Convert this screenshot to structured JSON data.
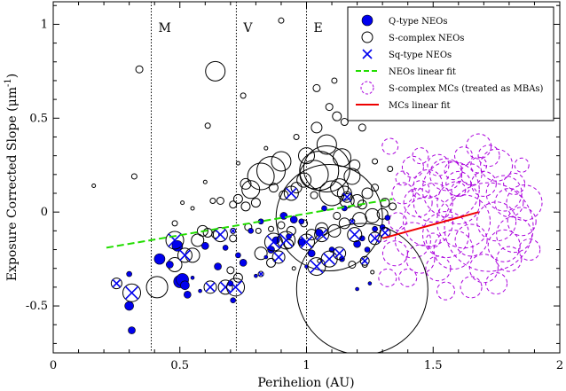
{
  "chart_data": {
    "type": "scatter",
    "xlabel": "Perihelion (AU)",
    "ylabel_main": "Exposure Corrected Slope (μm",
    "ylabel_sup": "-1",
    "ylabel_end": ")",
    "xlim": [
      0,
      2
    ],
    "ylim": [
      -0.75,
      1.12
    ],
    "x_ticks": [
      0,
      0.5,
      1,
      1.5,
      2
    ],
    "x_tick_labels": [
      "0",
      "0.5",
      "1",
      "1.5",
      "2"
    ],
    "y_ticks": [
      -0.5,
      0,
      0.5,
      1
    ],
    "y_tick_labels": [
      "-0.5",
      "0",
      "0.5",
      "1"
    ],
    "grid": false,
    "legend_position": "top-right",
    "reference_lines": [
      {
        "x": 0.387,
        "label": "M"
      },
      {
        "x": 0.723,
        "label": "V"
      },
      {
        "x": 1.0,
        "label": "E"
      }
    ],
    "colors": {
      "q_type": "#0000ee",
      "s_complex": "#000000",
      "sq_type": "#0000ee",
      "neo_fit": "#22dd00",
      "mc": "#aa00dd",
      "mc_fit": "#ee0000"
    },
    "series": [
      {
        "name": "Q-type NEOs",
        "marker": "filled-circle",
        "points": [
          [
            0.31,
            -0.63,
            4
          ],
          [
            0.3,
            -0.5,
            5
          ],
          [
            0.3,
            -0.33,
            3
          ],
          [
            0.42,
            -0.25,
            6
          ],
          [
            0.49,
            -0.18,
            6
          ],
          [
            0.46,
            -0.28,
            4
          ],
          [
            0.5,
            -0.37,
            7
          ],
          [
            0.51,
            -0.36,
            7
          ],
          [
            0.52,
            -0.39,
            5
          ],
          [
            0.53,
            -0.44,
            4
          ],
          [
            0.6,
            -0.18,
            4
          ],
          [
            0.65,
            -0.29,
            4
          ],
          [
            0.68,
            -0.19,
            3
          ],
          [
            0.7,
            -0.38,
            3
          ],
          [
            0.71,
            -0.47,
            3
          ],
          [
            0.73,
            -0.23,
            3
          ],
          [
            0.75,
            -0.27,
            4
          ],
          [
            0.78,
            -0.1,
            3
          ],
          [
            0.82,
            -0.05,
            3
          ],
          [
            0.86,
            -0.2,
            4
          ],
          [
            0.88,
            -0.15,
            4
          ],
          [
            0.95,
            -0.04,
            4
          ],
          [
            0.98,
            -0.16,
            4
          ],
          [
            1.02,
            -0.22,
            4
          ],
          [
            1.05,
            -0.11,
            4
          ],
          [
            1.1,
            -0.2,
            3
          ],
          [
            1.14,
            -0.25,
            3
          ],
          [
            1.2,
            -0.17,
            4
          ],
          [
            1.22,
            -0.14,
            3
          ],
          [
            1.24,
            -0.2,
            3
          ],
          [
            1.27,
            -0.09,
            3
          ],
          [
            1.3,
            -0.08,
            3
          ],
          [
            1.32,
            -0.03,
            3
          ],
          [
            1.25,
            -0.38,
            2
          ],
          [
            1.2,
            -0.41,
            2
          ],
          [
            0.91,
            -0.02,
            4
          ],
          [
            0.98,
            -0.05,
            3
          ],
          [
            1.07,
            0.02,
            3
          ],
          [
            1.15,
            0.02,
            3
          ],
          [
            0.8,
            -0.34,
            2
          ],
          [
            0.84,
            -0.24,
            2
          ],
          [
            0.93,
            -0.13,
            3
          ],
          [
            1.0,
            -0.29,
            2
          ],
          [
            0.58,
            -0.42,
            2
          ],
          [
            0.55,
            -0.35,
            2
          ]
        ]
      },
      {
        "name": "S-complex NEOs",
        "marker": "open-circle",
        "points": [
          [
            0.34,
            0.76,
            4
          ],
          [
            0.64,
            0.75,
            11
          ],
          [
            0.9,
            1.02,
            3
          ],
          [
            0.61,
            0.46,
            3
          ],
          [
            0.75,
            0.62,
            3
          ],
          [
            1.04,
            0.66,
            4
          ],
          [
            1.11,
            0.7,
            3
          ],
          [
            1.09,
            0.56,
            4
          ],
          [
            1.12,
            0.51,
            5
          ],
          [
            1.15,
            0.48,
            4
          ],
          [
            1.22,
            0.45,
            4
          ],
          [
            1.04,
            0.45,
            6
          ],
          [
            1.08,
            0.36,
            11
          ],
          [
            1.0,
            0.3,
            9
          ],
          [
            1.08,
            0.23,
            26
          ],
          [
            1.05,
            0.22,
            22
          ],
          [
            1.1,
            0.1,
            14
          ],
          [
            1.13,
            0.13,
            10
          ],
          [
            1.15,
            0.1,
            8
          ],
          [
            1.16,
            0.06,
            8
          ],
          [
            1.2,
            0.06,
            7
          ],
          [
            1.22,
            0.04,
            5
          ],
          [
            1.24,
            0.1,
            6
          ],
          [
            1.27,
            0.13,
            4
          ],
          [
            1.19,
            0.25,
            6
          ],
          [
            1.18,
            0.19,
            9
          ],
          [
            1.14,
            0.29,
            10
          ],
          [
            1.03,
            0.2,
            16
          ],
          [
            0.99,
            0.17,
            8
          ],
          [
            0.96,
            0.13,
            6
          ],
          [
            0.91,
            0.09,
            5
          ],
          [
            0.9,
            0.27,
            11
          ],
          [
            0.86,
            0.22,
            16
          ],
          [
            0.87,
            0.13,
            5
          ],
          [
            0.82,
            0.19,
            15
          ],
          [
            0.78,
            0.12,
            10
          ],
          [
            0.76,
            0.15,
            6
          ],
          [
            0.8,
            0.05,
            5
          ],
          [
            0.76,
            0.03,
            5
          ],
          [
            0.73,
            0.07,
            5
          ],
          [
            0.71,
            0.04,
            4
          ],
          [
            0.66,
            0.06,
            4
          ],
          [
            0.63,
            0.06,
            3
          ],
          [
            0.59,
            -0.1,
            6
          ],
          [
            0.57,
            -0.15,
            7
          ],
          [
            0.55,
            -0.23,
            8
          ],
          [
            0.48,
            -0.28,
            8
          ],
          [
            0.41,
            -0.4,
            12
          ],
          [
            0.61,
            -0.11,
            5
          ],
          [
            0.64,
            -0.12,
            4
          ],
          [
            0.71,
            -0.14,
            4
          ],
          [
            0.77,
            -0.08,
            4
          ],
          [
            0.81,
            -0.1,
            3
          ],
          [
            0.86,
            -0.09,
            3
          ],
          [
            0.9,
            -0.07,
            4
          ],
          [
            0.94,
            -0.1,
            5
          ],
          [
            0.99,
            -0.06,
            4
          ],
          [
            1.02,
            -0.12,
            6
          ],
          [
            1.06,
            -0.09,
            7
          ],
          [
            1.11,
            -0.1,
            7
          ],
          [
            1.15,
            -0.06,
            6
          ],
          [
            1.21,
            -0.04,
            8
          ],
          [
            1.26,
            -0.02,
            8
          ],
          [
            1.3,
            -0.01,
            6
          ],
          [
            1.31,
            0.05,
            5
          ],
          [
            1.34,
            0.03,
            4
          ],
          [
            1.23,
            -0.28,
            3
          ],
          [
            1.18,
            -0.28,
            4
          ],
          [
            1.26,
            -0.32,
            2
          ],
          [
            0.93,
            -0.17,
            5
          ],
          [
            0.86,
            -0.27,
            5
          ],
          [
            0.82,
            -0.22,
            7
          ],
          [
            0.73,
            -0.35,
            5
          ],
          [
            0.7,
            -0.31,
            4
          ],
          [
            0.16,
            0.14,
            2
          ],
          [
            0.32,
            0.19,
            3
          ],
          [
            0.6,
            0.16,
            2
          ],
          [
            0.55,
            0.02,
            2
          ],
          [
            0.51,
            0.05,
            2
          ],
          [
            0.48,
            -0.06,
            3
          ],
          [
            0.73,
            0.26,
            2
          ],
          [
            0.84,
            0.34,
            2
          ],
          [
            0.96,
            0.4,
            3
          ],
          [
            1.03,
            0.09,
            4
          ],
          [
            1.12,
            -0.02,
            4
          ],
          [
            1.23,
            0.52,
            2
          ],
          [
            1.27,
            0.27,
            3
          ],
          [
            1.33,
            0.23,
            3
          ],
          [
            0.95,
            -0.3,
            2
          ],
          [
            1.05,
            -0.26,
            2
          ],
          [
            1.09,
            -0.03,
            60
          ],
          [
            1.22,
            -0.41,
            74
          ]
        ]
      },
      {
        "name": "Sq-type NEOs",
        "marker": "cross",
        "points": [
          [
            0.25,
            -0.38,
            6
          ],
          [
            0.31,
            -0.43,
            10
          ],
          [
            0.48,
            -0.15,
            10
          ],
          [
            0.52,
            -0.23,
            8
          ],
          [
            0.62,
            -0.4,
            7
          ],
          [
            0.66,
            -0.12,
            8
          ],
          [
            0.68,
            -0.4,
            8
          ],
          [
            0.72,
            -0.4,
            10
          ],
          [
            0.87,
            -0.16,
            10
          ],
          [
            0.89,
            -0.24,
            7
          ],
          [
            0.92,
            -0.15,
            10
          ],
          [
            1.0,
            -0.16,
            9
          ],
          [
            1.04,
            -0.29,
            10
          ],
          [
            1.09,
            -0.25,
            9
          ],
          [
            1.06,
            -0.12,
            8
          ],
          [
            1.13,
            -0.22,
            7
          ],
          [
            1.19,
            -0.12,
            8
          ],
          [
            1.23,
            -0.26,
            5
          ],
          [
            1.27,
            -0.14,
            7
          ],
          [
            1.31,
            -0.11,
            6
          ],
          [
            0.94,
            0.1,
            8
          ],
          [
            1.16,
            0.08,
            6
          ],
          [
            0.71,
            -0.1,
            3
          ],
          [
            0.82,
            -0.33,
            3
          ],
          [
            1.18,
            -0.05,
            3
          ]
        ]
      },
      {
        "name": "S-complex MCs (treated as MBAs)",
        "marker": "dashed-circle",
        "points": [
          [
            1.3,
            -0.12,
            8
          ],
          [
            1.32,
            -0.35,
            10
          ],
          [
            1.35,
            -0.22,
            14
          ],
          [
            1.38,
            0.1,
            12
          ],
          [
            1.33,
            0.35,
            9
          ],
          [
            1.38,
            0.18,
            8
          ],
          [
            1.42,
            0.24,
            12
          ],
          [
            1.45,
            0.3,
            9
          ],
          [
            1.48,
            0.15,
            16
          ],
          [
            1.5,
            0.05,
            22
          ],
          [
            1.52,
            0.25,
            12
          ],
          [
            1.55,
            0.2,
            18
          ],
          [
            1.58,
            0.22,
            10
          ],
          [
            1.6,
            0.15,
            14
          ],
          [
            1.62,
            0.3,
            10
          ],
          [
            1.65,
            0.2,
            12
          ],
          [
            1.68,
            0.25,
            9
          ],
          [
            1.7,
            0.15,
            14
          ],
          [
            1.72,
            0.3,
            12
          ],
          [
            1.75,
            0.25,
            18
          ],
          [
            1.78,
            0.1,
            20
          ],
          [
            1.8,
            0.05,
            16
          ],
          [
            1.82,
            0.15,
            12
          ],
          [
            1.85,
            0.25,
            8
          ],
          [
            1.6,
            0.05,
            24
          ],
          [
            1.62,
            -0.05,
            30
          ],
          [
            1.55,
            -0.12,
            26
          ],
          [
            1.48,
            -0.05,
            28
          ],
          [
            1.42,
            -0.15,
            20
          ],
          [
            1.45,
            -0.25,
            16
          ],
          [
            1.52,
            -0.3,
            14
          ],
          [
            1.58,
            -0.2,
            22
          ],
          [
            1.65,
            -0.15,
            18
          ],
          [
            1.7,
            -0.3,
            16
          ],
          [
            1.75,
            -0.05,
            22
          ],
          [
            1.78,
            -0.18,
            18
          ],
          [
            1.82,
            -0.12,
            20
          ],
          [
            1.85,
            -0.05,
            16
          ],
          [
            1.86,
            0.05,
            20
          ],
          [
            1.8,
            -0.25,
            14
          ],
          [
            1.72,
            -0.08,
            50
          ],
          [
            1.57,
            0.12,
            32
          ],
          [
            1.68,
            0.35,
            14
          ],
          [
            1.44,
            0.05,
            16
          ],
          [
            1.4,
            -0.35,
            10
          ],
          [
            1.55,
            -0.42,
            10
          ],
          [
            1.65,
            -0.4,
            12
          ],
          [
            1.75,
            -0.38,
            12
          ],
          [
            1.88,
            -0.2,
            12
          ],
          [
            1.6,
            0.12,
            8
          ],
          [
            1.5,
            -0.15,
            8
          ],
          [
            1.45,
            0.12,
            10
          ],
          [
            1.36,
            -0.05,
            10
          ]
        ]
      }
    ],
    "fits": [
      {
        "name": "NEOs linear fit",
        "style": "dashed",
        "x": [
          0.21,
          1.34
        ],
        "y": [
          -0.19,
          0.07
        ]
      },
      {
        "name": "MCs linear fit",
        "style": "solid",
        "x": [
          1.3,
          1.68
        ],
        "y": [
          -0.14,
          0.0
        ]
      }
    ],
    "legend_entries": [
      {
        "label": "Q-type NEOs",
        "marker": "filled-circle"
      },
      {
        "label": "S-complex NEOs",
        "marker": "open-circle"
      },
      {
        "label": "Sq-type NEOs",
        "marker": "cross"
      },
      {
        "label": "NEOs linear fit",
        "marker": "green-dash"
      },
      {
        "label": "S-complex MCs (treated as MBAs)",
        "marker": "dashed-circle"
      },
      {
        "label": "MCs linear fit",
        "marker": "red-line"
      }
    ]
  }
}
